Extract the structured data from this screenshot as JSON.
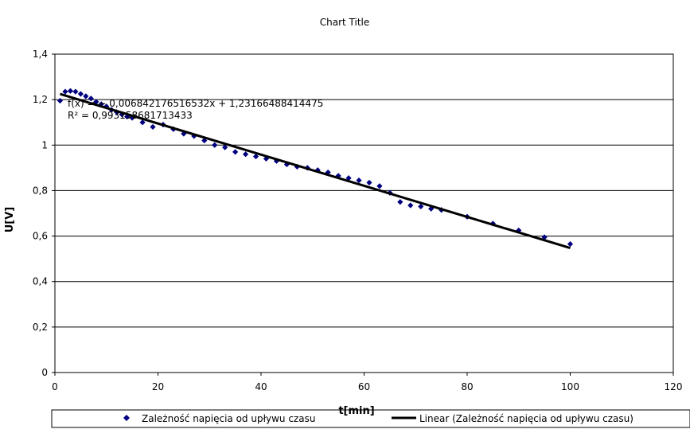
{
  "chart_data": {
    "type": "scatter",
    "title": "Chart Title",
    "xlabel": "t[min]",
    "ylabel": "U[V]",
    "xlim": [
      0,
      120
    ],
    "ylim": [
      0,
      1.4
    ],
    "x_ticks": [
      0,
      20,
      40,
      60,
      80,
      100,
      120
    ],
    "x_tick_labels": [
      "0",
      "20",
      "40",
      "60",
      "80",
      "100",
      "120"
    ],
    "y_ticks": [
      0,
      0.2,
      0.4,
      0.6,
      0.8,
      1.0,
      1.2,
      1.4
    ],
    "y_tick_labels": [
      "0",
      "0,2",
      "0,4",
      "0,6",
      "0,8",
      "1",
      "1,2",
      "1,4"
    ],
    "grid": "horizontal",
    "legend_position": "bottom",
    "series": [
      {
        "name": "Zależność napięcia od upływu czasu",
        "kind": "scatter",
        "marker": "diamond",
        "color": "#000080",
        "points": [
          [
            1,
            1.195
          ],
          [
            2,
            1.235
          ],
          [
            3,
            1.238
          ],
          [
            4,
            1.235
          ],
          [
            5,
            1.225
          ],
          [
            6,
            1.215
          ],
          [
            7,
            1.205
          ],
          [
            8,
            1.19
          ],
          [
            9,
            1.18
          ],
          [
            10,
            1.17
          ],
          [
            11,
            1.155
          ],
          [
            12,
            1.145
          ],
          [
            13,
            1.135
          ],
          [
            14,
            1.125
          ],
          [
            15,
            1.12
          ],
          [
            17,
            1.1
          ],
          [
            19,
            1.08
          ],
          [
            21,
            1.09
          ],
          [
            23,
            1.07
          ],
          [
            25,
            1.05
          ],
          [
            27,
            1.04
          ],
          [
            29,
            1.02
          ],
          [
            31,
            1.0
          ],
          [
            33,
            0.99
          ],
          [
            35,
            0.97
          ],
          [
            37,
            0.96
          ],
          [
            39,
            0.95
          ],
          [
            41,
            0.94
          ],
          [
            43,
            0.93
          ],
          [
            45,
            0.915
          ],
          [
            47,
            0.905
          ],
          [
            49,
            0.9
          ],
          [
            51,
            0.89
          ],
          [
            53,
            0.88
          ],
          [
            55,
            0.865
          ],
          [
            57,
            0.855
          ],
          [
            59,
            0.845
          ],
          [
            61,
            0.835
          ],
          [
            63,
            0.82
          ],
          [
            65,
            0.79
          ],
          [
            67,
            0.75
          ],
          [
            69,
            0.735
          ],
          [
            71,
            0.73
          ],
          [
            73,
            0.72
          ],
          [
            75,
            0.715
          ],
          [
            80,
            0.685
          ],
          [
            85,
            0.655
          ],
          [
            90,
            0.625
          ],
          [
            95,
            0.595
          ],
          [
            100,
            0.565
          ]
        ]
      },
      {
        "name": "Linear (Zależność napięcia od upływu czasu)",
        "kind": "line",
        "color": "#000000",
        "slope": -0.006842176516532,
        "intercept": 1.23166488414475,
        "x_range": [
          1,
          100
        ]
      }
    ],
    "annotations": {
      "equation": "f(x) = − 0,006842176516532x + 1,23166488414475",
      "r_squared": "R² = 0,993158681713433"
    }
  }
}
